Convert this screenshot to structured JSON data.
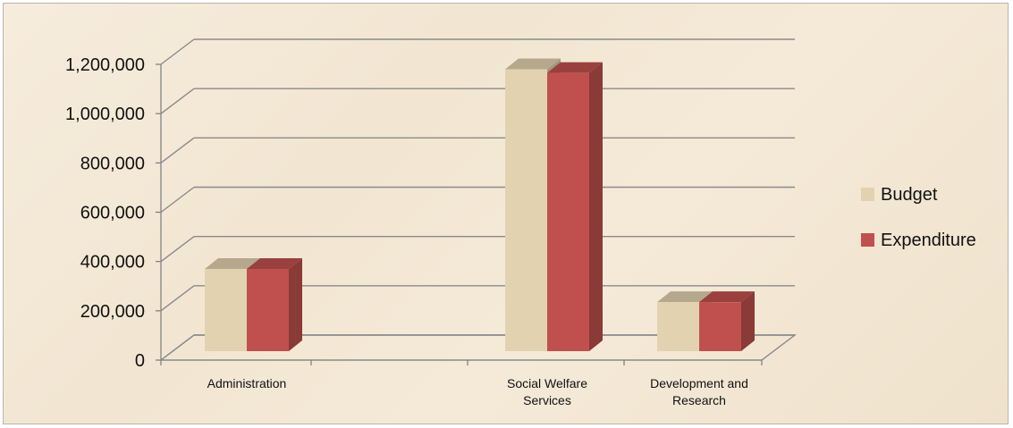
{
  "chart_data": {
    "type": "bar",
    "title": "",
    "xlabel": "",
    "ylabel": "",
    "categories": [
      [
        "Administration"
      ],
      [
        "Social Welfare",
        "Services"
      ],
      [
        "Development and",
        "Research"
      ]
    ],
    "series": [
      {
        "name": "Budget",
        "color": "#e3d2b0",
        "values": [
          370000,
          1180000,
          235000
        ]
      },
      {
        "name": "Expenditure",
        "color": "#c0504d",
        "values": [
          370000,
          1165000,
          235000
        ]
      }
    ],
    "ylim": [
      0,
      1200000
    ],
    "yticks": [
      "0",
      "200,000",
      "400,000",
      "600,000",
      "800,000",
      "1,000,000",
      "1,200,000"
    ],
    "grid": true,
    "legend_position": "right"
  }
}
